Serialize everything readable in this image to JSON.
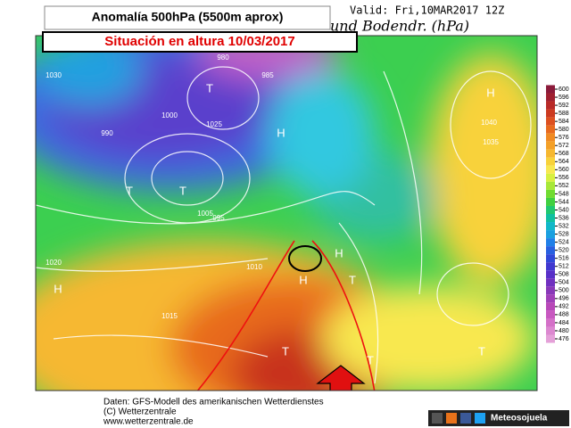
{
  "header": {
    "title": "Anomalía 500hPa (5500m aprox)",
    "subtitle": "Situación en altura 10/03/2017",
    "valid": "Valid: Fri,10MAR2017 12Z",
    "map_title": "und Bodendr. (hPa)"
  },
  "colorbar": {
    "ticks": [
      600,
      596,
      592,
      588,
      584,
      580,
      576,
      572,
      568,
      564,
      560,
      556,
      552,
      548,
      544,
      540,
      536,
      532,
      528,
      524,
      520,
      516,
      512,
      508,
      504,
      500,
      496,
      492,
      488,
      484,
      480,
      476
    ],
    "colors": [
      "#8b1a3a",
      "#a02030",
      "#b82a28",
      "#cc3a20",
      "#dd5020",
      "#e86a1e",
      "#f08a22",
      "#f4a028",
      "#f6b830",
      "#f8d23a",
      "#f8e850",
      "#d8f040",
      "#a8e838",
      "#70dc30",
      "#40d040",
      "#20c870",
      "#10c0a0",
      "#10b8c8",
      "#1aa0e0",
      "#2080e8",
      "#2860e0",
      "#3048d8",
      "#4038d0",
      "#5830c8",
      "#7030c0",
      "#8838b8",
      "#a040b8",
      "#b848b8",
      "#c858c0",
      "#d470c8",
      "#dc88d0",
      "#e4a0d8"
    ]
  },
  "map": {
    "centers": [
      "H",
      "T",
      "T",
      "T",
      "H",
      "H",
      "H",
      "H",
      "T",
      "T",
      "T",
      "T"
    ],
    "isobars": [
      "1040",
      "1035",
      "1030",
      "1025",
      "1020",
      "1015",
      "1010",
      "1005",
      "1000",
      "995",
      "990",
      "985",
      "980"
    ]
  },
  "footer": {
    "source": "Daten: GFS-Modell des amerikanischen Wetterdienstes",
    "copyright": "(C) Wetterzentrale",
    "url": "www.wetterzentrale.de",
    "brand": "Meteosojuela"
  }
}
